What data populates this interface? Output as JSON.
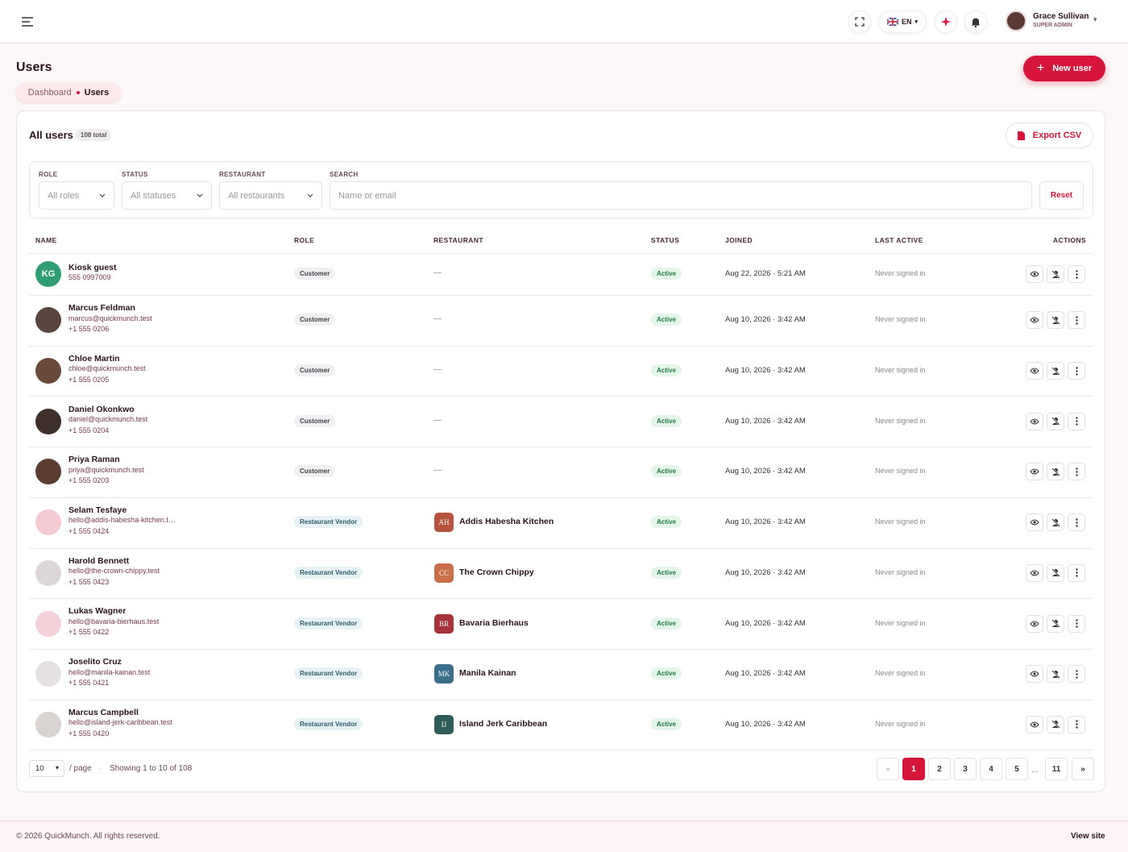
{
  "topbar": {
    "lang": "EN",
    "user_name": "Grace Sullivan",
    "user_role": "SUPER ADMIN"
  },
  "header": {
    "title": "Users",
    "new_button": "New user",
    "breadcrumb": [
      "Dashboard",
      "Users"
    ]
  },
  "card": {
    "title": "All users",
    "total_badge": "108 total",
    "export_button": "Export CSV"
  },
  "filters": {
    "role": {
      "label": "ROLE",
      "placeholder": "All roles"
    },
    "status": {
      "label": "STATUS",
      "placeholder": "All statuses"
    },
    "restaurant": {
      "label": "RESTAURANT",
      "placeholder": "All restaurants"
    },
    "search": {
      "label": "SEARCH",
      "placeholder": "Name or email"
    },
    "reset_button": "Reset"
  },
  "table": {
    "columns": [
      "NAME",
      "ROLE",
      "RESTAURANT",
      "STATUS",
      "JOINED",
      "LAST ACTIVE",
      "ACTIONS"
    ],
    "rows": [
      {
        "initials": "KG",
        "name": "Kiosk guest",
        "phone": "555 0997009",
        "role": "Customer",
        "restaurant": "—",
        "status": "Active",
        "joined": "Aug 22, 2026 · 5:21 AM",
        "last_active": "Never signed in"
      },
      {
        "name": "Marcus Feldman",
        "email": "marcus@quickmunch.test",
        "phone": "+1 555 0206",
        "role": "Customer",
        "restaurant": "—",
        "status": "Active",
        "joined": "Aug 10, 2026 · 3:42 AM",
        "last_active": "Never signed in"
      },
      {
        "name": "Chloe Martin",
        "email": "chloe@quickmunch.test",
        "phone": "+1 555 0205",
        "role": "Customer",
        "restaurant": "—",
        "status": "Active",
        "joined": "Aug 10, 2026 · 3:42 AM",
        "last_active": "Never signed in"
      },
      {
        "name": "Daniel Okonkwo",
        "email": "daniel@quickmunch.test",
        "phone": "+1 555 0204",
        "role": "Customer",
        "restaurant": "—",
        "status": "Active",
        "joined": "Aug 10, 2026 · 3:42 AM",
        "last_active": "Never signed in"
      },
      {
        "name": "Priya Raman",
        "email": "priya@quickmunch.test",
        "phone": "+1 555 0203",
        "role": "Customer",
        "restaurant": "—",
        "status": "Active",
        "joined": "Aug 10, 2026 · 3:42 AM",
        "last_active": "Never signed in"
      },
      {
        "name": "Selam Tesfaye",
        "email": "hello@addis-habesha-kitchen.t…",
        "phone": "+1 555 0424",
        "role": "Restaurant Vendor",
        "restaurant_initials": "AH",
        "restaurant": "Addis Habesha Kitchen",
        "status": "Active",
        "joined": "Aug 10, 2026 · 3:42 AM",
        "last_active": "Never signed in"
      },
      {
        "name": "Harold Bennett",
        "email": "hello@the-crown-chippy.test",
        "phone": "+1 555 0423",
        "role": "Restaurant Vendor",
        "restaurant_initials": "CC",
        "restaurant": "The Crown Chippy",
        "status": "Active",
        "joined": "Aug 10, 2026 · 3:42 AM",
        "last_active": "Never signed in"
      },
      {
        "name": "Lukas Wagner",
        "email": "hello@bavaria-bierhaus.test",
        "phone": "+1 555 0422",
        "role": "Restaurant Vendor",
        "restaurant_initials": "BR",
        "restaurant": "Bavaria Bierhaus",
        "status": "Active",
        "joined": "Aug 10, 2026 · 3:42 AM",
        "last_active": "Never signed in"
      },
      {
        "name": "Joselito Cruz",
        "email": "hello@manila-kainan.test",
        "phone": "+1 555 0421",
        "role": "Restaurant Vendor",
        "restaurant_initials": "MK",
        "restaurant": "Manila Kainan",
        "status": "Active",
        "joined": "Aug 10, 2026 · 3:42 AM",
        "last_active": "Never signed in"
      },
      {
        "name": "Marcus Campbell",
        "email": "hello@island-jerk-caribbean.test",
        "phone": "+1 555 0420",
        "role": "Restaurant Vendor",
        "restaurant_initials": "IJ",
        "restaurant": "Island Jerk Caribbean",
        "status": "Active",
        "joined": "Aug 10, 2026 · 3:42 AM",
        "last_active": "Never signed in"
      }
    ]
  },
  "pagination": {
    "per_page": "10",
    "per_page_label": "/ page",
    "showing": "Showing 1 to 10 of 108",
    "pages": [
      "«",
      "1",
      "2",
      "3",
      "4",
      "5",
      "...",
      "11",
      "»"
    ],
    "current": "1"
  },
  "footer": {
    "copyright": "© 2026 QuickMunch. All rights reserved.",
    "link": "View site"
  }
}
